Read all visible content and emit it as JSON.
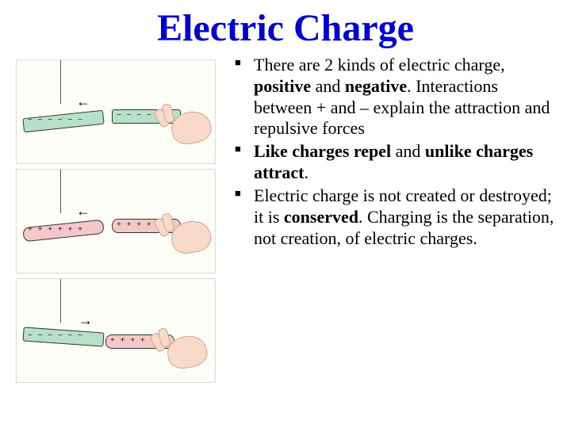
{
  "title": "Electric Charge",
  "bullets": [
    {
      "segments": [
        {
          "t": "There are 2 kinds of electric charge, ",
          "b": false
        },
        {
          "t": "positive",
          "b": true
        },
        {
          "t": " and ",
          "b": false
        },
        {
          "t": "negative",
          "b": true
        },
        {
          "t": ".  Interactions between + and – explain the attraction and repulsive forces",
          "b": false
        }
      ]
    },
    {
      "segments": [
        {
          "t": "Like charges repel",
          "b": true
        },
        {
          "t": " and ",
          "b": false
        },
        {
          "t": "unlike charges attract",
          "b": true
        },
        {
          "t": ".",
          "b": false
        }
      ]
    },
    {
      "segments": [
        {
          "t": "Electric charge is not created or destroyed; it is ",
          "b": false
        },
        {
          "t": "conserved",
          "b": true
        },
        {
          "t": ". Charging is the separation, not creation, of electric charges.",
          "b": false
        }
      ]
    }
  ],
  "figures": [
    {
      "type": "repel-like-negative",
      "left_rod": {
        "color": "green",
        "signs": "− − − − − −"
      },
      "right_rod": {
        "color": "green",
        "signs": "− − − − −"
      },
      "arrow_dir": "left"
    },
    {
      "type": "repel-like-positive",
      "left_rod": {
        "color": "pink",
        "signs": "+ + + + + +"
      },
      "right_rod": {
        "color": "pink",
        "signs": "+ + + +"
      },
      "arrow_dir": "left"
    },
    {
      "type": "attract-unlike",
      "left_rod": {
        "color": "green",
        "signs": "− − − − − −"
      },
      "right_rod": {
        "color": "pink",
        "signs": "+ + + +"
      },
      "arrow_dir": "right"
    }
  ],
  "colors": {
    "title": "#0000cc",
    "rod_green": "#b8e0c8",
    "rod_pink": "#f5c7c7",
    "hand": "#f9d9c8",
    "bg": "#ffffff"
  },
  "fontsize": {
    "title_pt": 40,
    "body_pt": 22
  }
}
